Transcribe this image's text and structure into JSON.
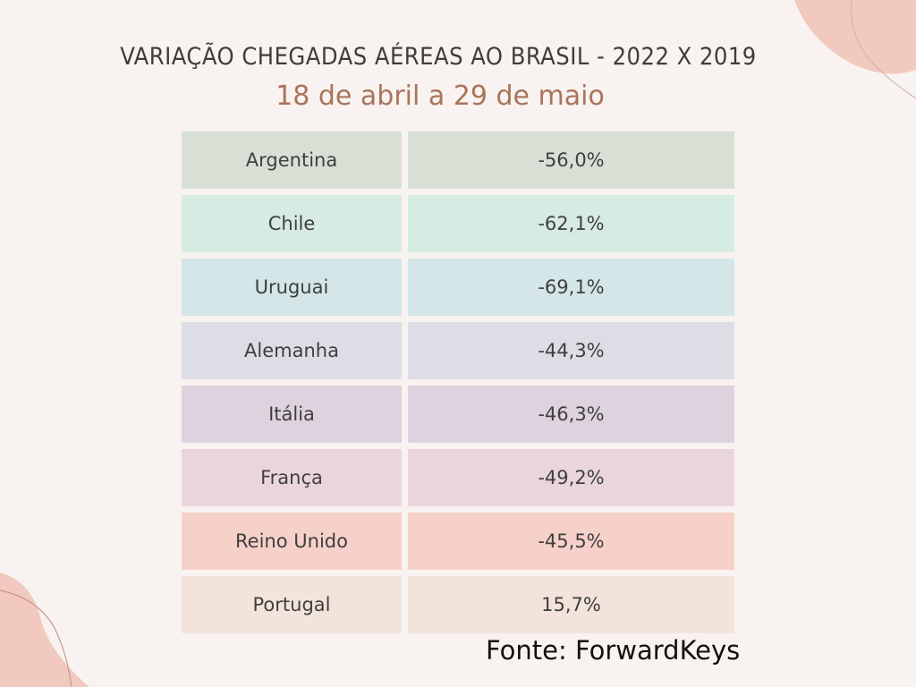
{
  "title": "Variação chegadas aéreas ao Brasil - 2022 x 2019",
  "subtitle": "18 de abril a 29 de maio",
  "source": "Fonte: ForwardKeys",
  "colors": {
    "background": "#f8f3f0",
    "title": "#3d3d3d",
    "subtitle": "#a9745a",
    "decoration": "#f2c9be"
  },
  "chart_data": {
    "type": "table",
    "title": "Variação chegadas aéreas ao Brasil - 2022 x 2019",
    "subtitle": "18 de abril a 29 de maio",
    "rows": [
      {
        "country": "Argentina",
        "label": "-56,0%",
        "value": -56.0,
        "color": "#d8e0d6"
      },
      {
        "country": "Chile",
        "label": "-62,1%",
        "value": -62.1,
        "color": "#d6ece2"
      },
      {
        "country": "Uruguai",
        "label": "-69,1%",
        "value": -69.1,
        "color": "#d4e6e7"
      },
      {
        "country": "Alemanha",
        "label": "-44,3%",
        "value": -44.3,
        "color": "#dddde6"
      },
      {
        "country": "Itália",
        "label": "-46,3%",
        "value": -46.3,
        "color": "#ddd2de"
      },
      {
        "country": "França",
        "label": "-49,2%",
        "value": -49.2,
        "color": "#ead5df"
      },
      {
        "country": "Reino Unido",
        "label": "-45,5%",
        "value": -45.5,
        "color": "#f6d1c9"
      },
      {
        "country": "Portugal",
        "label": "15,7%",
        "value": 15.7,
        "color": "#f3e4db"
      }
    ]
  }
}
